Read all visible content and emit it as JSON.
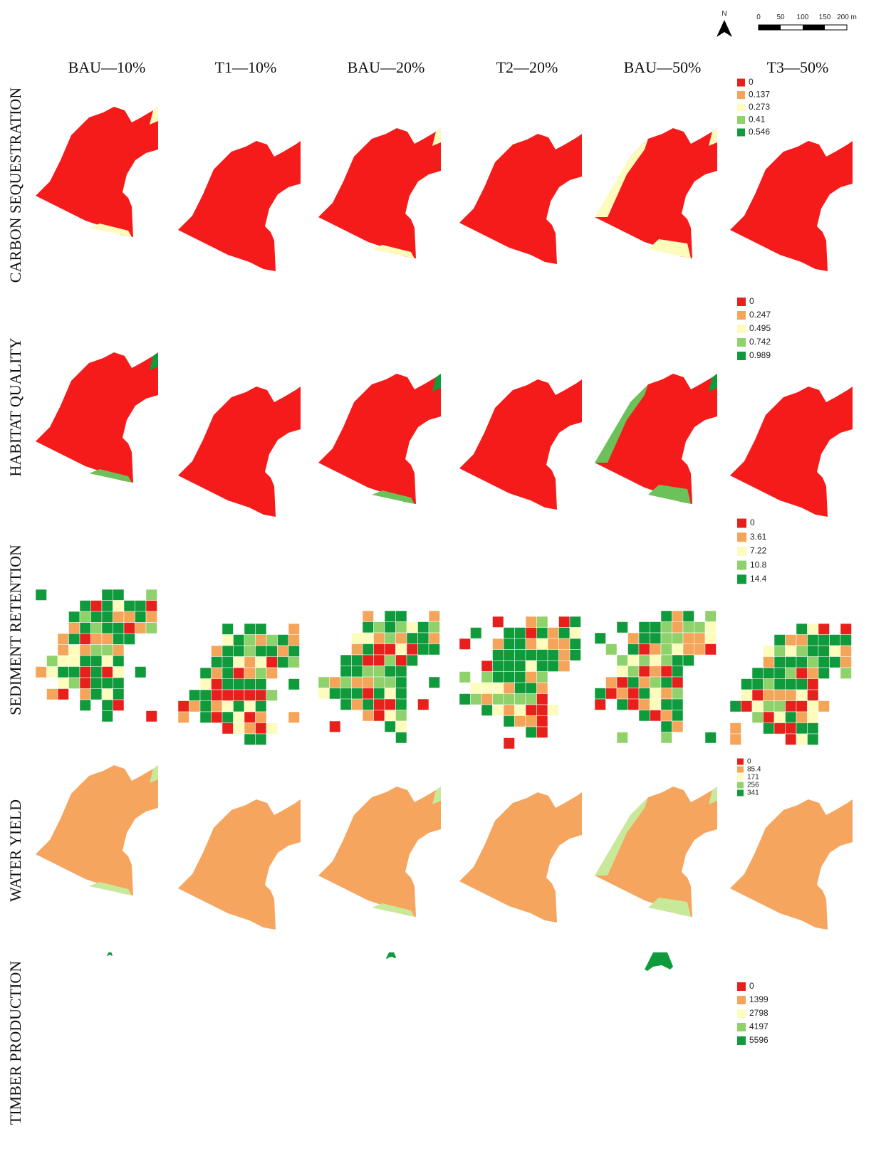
{
  "north": "N",
  "scale_bar": [
    "0",
    "50",
    "100",
    "150",
    "200 m"
  ],
  "columns": [
    "BAU—10%",
    "T1—10%",
    "BAU—20%",
    "T2—20%",
    "BAU—50%",
    "T3—50%"
  ],
  "rows": [
    {
      "label": "CARBON SEQUESTRATION",
      "legend": [
        "0",
        "0.137",
        "0.273",
        "0.41",
        "0.546"
      ]
    },
    {
      "label": "HABITAT QUALITY",
      "legend": [
        "0",
        "0.247",
        "0.495",
        "0.742",
        "0.989"
      ]
    },
    {
      "label": "SEDIMENT RETENTION",
      "legend": [
        "0",
        "3.61",
        "7.22",
        "10.8",
        "14.4"
      ]
    },
    {
      "label": "WATER YIELD",
      "legend": [
        "0",
        "85.4",
        "171",
        "256",
        "341"
      ]
    },
    {
      "label": "TIMBER PRODUCTION",
      "legend": [
        "0",
        "1399",
        "2798",
        "4197",
        "5596"
      ]
    }
  ]
}
